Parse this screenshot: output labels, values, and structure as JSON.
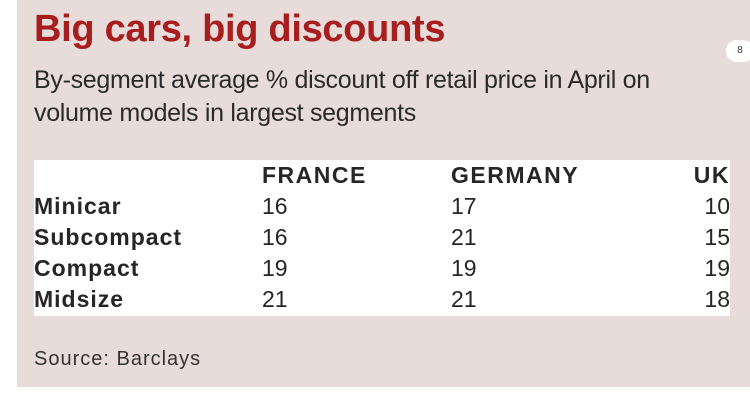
{
  "header": {
    "title": "Big cars, big discounts",
    "subtitle": "By-segment average % discount off retail price in April on volume models in largest segments",
    "page_number": "8"
  },
  "footer": {
    "source": "Source: Barclays"
  },
  "colors": {
    "title": "#a81d1d",
    "background": "#e7dcda",
    "table_background": "#ffffff"
  },
  "chart_data": {
    "type": "table",
    "title": "Big cars, big discounts",
    "subtitle": "By-segment average % discount off retail price in April on volume models in largest segments",
    "columns": [
      "FRANCE",
      "GERMANY",
      "UK"
    ],
    "rows": [
      {
        "label": "Minicar",
        "values": [
          16,
          17,
          10
        ]
      },
      {
        "label": "Subcompact",
        "values": [
          16,
          21,
          15
        ]
      },
      {
        "label": "Compact",
        "values": [
          19,
          19,
          19
        ]
      },
      {
        "label": "Midsize",
        "values": [
          21,
          21,
          18
        ]
      }
    ],
    "source": "Source: Barclays"
  }
}
